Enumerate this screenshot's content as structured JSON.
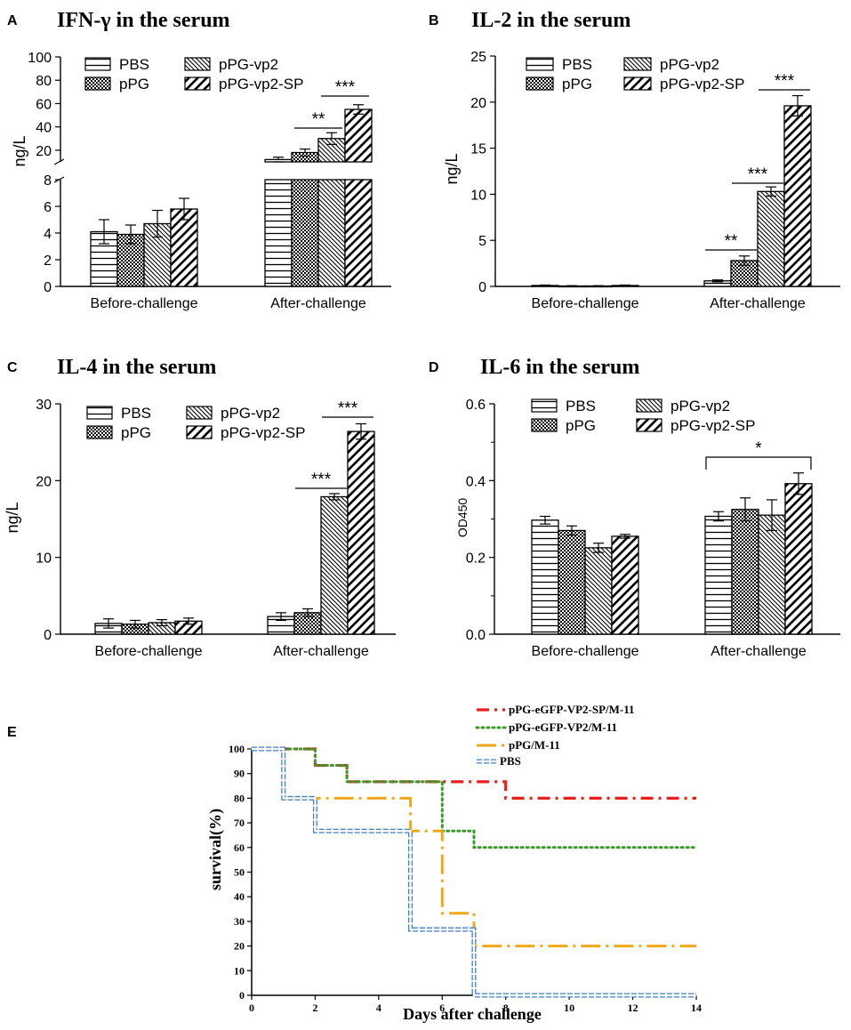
{
  "figure": {
    "panel_letters": [
      "A",
      "B",
      "C",
      "D",
      "E"
    ],
    "series_names": [
      "PBS",
      "pPG",
      "pPG-vp2",
      "pPG-vp2-SP"
    ],
    "patterns": [
      "hstripes",
      "checker",
      "backslash",
      "slash"
    ]
  },
  "chart_data": [
    {
      "type": "bar",
      "panel": "A",
      "title": "IFN-γ in the serum",
      "ylabel": "ng/L",
      "xlabel": "",
      "categories": [
        "Before-challenge",
        "After-challenge"
      ],
      "axis_break": {
        "lower_ylim": [
          0,
          8
        ],
        "upper_ylim": [
          10,
          100
        ]
      },
      "lower_ticks": [
        "0",
        "2",
        "4",
        "6",
        "8"
      ],
      "upper_ticks": [
        "20",
        "40",
        "60",
        "80",
        "100"
      ],
      "series": [
        {
          "name": "PBS",
          "values": [
            4.1,
            12
          ],
          "errors": [
            0.9,
            2
          ]
        },
        {
          "name": "pPG",
          "values": [
            3.9,
            18
          ],
          "errors": [
            0.7,
            3
          ]
        },
        {
          "name": "pPG-vp2",
          "values": [
            4.7,
            30
          ],
          "errors": [
            1.0,
            5
          ]
        },
        {
          "name": "pPG-vp2-SP",
          "values": [
            5.8,
            55
          ],
          "errors": [
            0.8,
            4
          ]
        }
      ],
      "significance": [
        {
          "label": "**",
          "between": [
            "pPG",
            "pPG-vp2"
          ],
          "category": "After-challenge"
        },
        {
          "label": "***",
          "between": [
            "pPG-vp2",
            "pPG-vp2-SP"
          ],
          "category": "After-challenge"
        }
      ]
    },
    {
      "type": "bar",
      "panel": "B",
      "title": "IL-2 in the serum",
      "ylabel": "ng/L",
      "xlabel": "",
      "categories": [
        "Before-challenge",
        "After-challenge"
      ],
      "ylim": [
        0,
        25
      ],
      "ticks": [
        "0",
        "5",
        "10",
        "15",
        "20",
        "25"
      ],
      "series": [
        {
          "name": "PBS",
          "values": [
            0.1,
            0.6
          ],
          "errors": [
            0.05,
            0.1
          ]
        },
        {
          "name": "pPG",
          "values": [
            0.05,
            2.8
          ],
          "errors": [
            0.03,
            0.5
          ]
        },
        {
          "name": "pPG-vp2",
          "values": [
            0.05,
            10.3
          ],
          "errors": [
            0.03,
            0.5
          ]
        },
        {
          "name": "pPG-vp2-SP",
          "values": [
            0.1,
            19.6
          ],
          "errors": [
            0.05,
            1.1
          ]
        }
      ],
      "significance": [
        {
          "label": "**",
          "between": [
            "PBS",
            "pPG"
          ],
          "category": "After-challenge"
        },
        {
          "label": "***",
          "between": [
            "pPG",
            "pPG-vp2"
          ],
          "category": "After-challenge"
        },
        {
          "label": "***",
          "between": [
            "pPG-vp2",
            "pPG-vp2-SP"
          ],
          "category": "After-challenge"
        }
      ]
    },
    {
      "type": "bar",
      "panel": "C",
      "title": "IL-4 in the serum",
      "ylabel": "ng/L",
      "xlabel": "",
      "categories": [
        "Before-challenge",
        "After-challenge"
      ],
      "ylim": [
        0,
        30
      ],
      "ticks": [
        "0",
        "10",
        "20",
        "30"
      ],
      "series": [
        {
          "name": "PBS",
          "values": [
            1.4,
            2.3
          ],
          "errors": [
            0.6,
            0.5
          ]
        },
        {
          "name": "pPG",
          "values": [
            1.3,
            2.8
          ],
          "errors": [
            0.5,
            0.5
          ]
        },
        {
          "name": "pPG-vp2",
          "values": [
            1.5,
            17.9
          ],
          "errors": [
            0.4,
            0.4
          ]
        },
        {
          "name": "pPG-vp2-SP",
          "values": [
            1.7,
            26.4
          ],
          "errors": [
            0.4,
            1.0
          ]
        }
      ],
      "significance": [
        {
          "label": "***",
          "between": [
            "pPG",
            "pPG-vp2"
          ],
          "category": "After-challenge"
        },
        {
          "label": "***",
          "between": [
            "pPG-vp2",
            "pPG-vp2-SP"
          ],
          "category": "After-challenge"
        }
      ]
    },
    {
      "type": "bar",
      "panel": "D",
      "title": "IL-6 in the serum",
      "ylabel": "OD450",
      "xlabel": "",
      "categories": [
        "Before-challenge",
        "After-challenge"
      ],
      "ylim": [
        0,
        0.6
      ],
      "ticks": [
        "0.0",
        "0.2",
        "0.4",
        "0.6"
      ],
      "series": [
        {
          "name": "PBS",
          "values": [
            0.297,
            0.307
          ],
          "errors": [
            0.01,
            0.012
          ]
        },
        {
          "name": "pPG",
          "values": [
            0.27,
            0.325
          ],
          "errors": [
            0.012,
            0.03
          ]
        },
        {
          "name": "pPG-vp2",
          "values": [
            0.225,
            0.31
          ],
          "errors": [
            0.012,
            0.04
          ]
        },
        {
          "name": "pPG-vp2-SP",
          "values": [
            0.255,
            0.392
          ],
          "errors": [
            0.005,
            0.028
          ]
        }
      ],
      "significance": [
        {
          "label": "*",
          "between": [
            "PBS",
            "pPG-vp2-SP"
          ],
          "category": "After-challenge"
        }
      ]
    },
    {
      "type": "line",
      "subtype": "survival-step",
      "panel": "E",
      "title": "",
      "xlabel": "Days after challenge",
      "ylabel": "survival(%)",
      "xlim": [
        0,
        14
      ],
      "ylim": [
        0,
        100
      ],
      "xticks": [
        "0",
        "2",
        "4",
        "6",
        "8",
        "10",
        "12",
        "14"
      ],
      "yticks": [
        "0",
        "10",
        "20",
        "30",
        "40",
        "50",
        "60",
        "70",
        "80",
        "90",
        "100"
      ],
      "series": [
        {
          "name": "pPG-eGFP-VP2-SP/M-11",
          "color": "#e8201c",
          "style": "dashdot",
          "steps": [
            [
              0,
              100
            ],
            [
              2,
              93.3
            ],
            [
              3,
              86.7
            ],
            [
              8,
              80
            ],
            [
              14,
              80
            ]
          ]
        },
        {
          "name": "pPG-eGFP-VP2/M-11",
          "color": "#3a9b2a",
          "style": "dotted",
          "steps": [
            [
              0,
              100
            ],
            [
              2,
              93.3
            ],
            [
              3,
              86.7
            ],
            [
              6,
              66.7
            ],
            [
              7,
              60
            ],
            [
              14,
              60
            ]
          ]
        },
        {
          "name": "pPG/M-11",
          "color": "#f0a81a",
          "style": "longdashdot",
          "steps": [
            [
              0,
              100
            ],
            [
              1,
              80
            ],
            [
              5,
              66.7
            ],
            [
              6,
              33.3
            ],
            [
              7,
              20
            ],
            [
              14,
              20
            ]
          ]
        },
        {
          "name": "PBS",
          "color": "#3f7fc0",
          "style": "outline",
          "steps": [
            [
              0,
              100
            ],
            [
              1,
              80
            ],
            [
              2,
              66.7
            ],
            [
              5,
              26.7
            ],
            [
              7,
              0
            ],
            [
              14,
              0
            ]
          ]
        }
      ]
    }
  ]
}
